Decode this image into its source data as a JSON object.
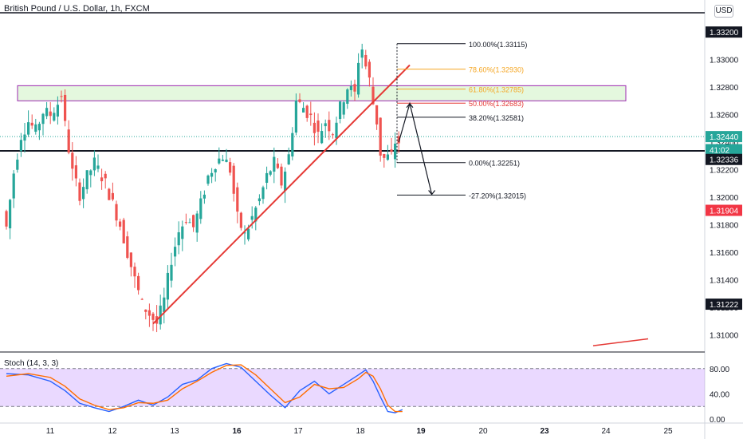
{
  "header": {
    "symbol_title": "British Pound / U.S. Dollar, 1h, FXCM",
    "currency_button": "USD"
  },
  "chart_data": [
    {
      "type": "candlestick",
      "title": "British Pound / U.S. Dollar, 1h, FXCM",
      "y_ticks": [
        "1.33200",
        "1.33000",
        "1.32800",
        "1.32600",
        "1.32400",
        "1.32200",
        "1.32000",
        "1.31800",
        "1.31600",
        "1.31400",
        "1.31200",
        "1.31000"
      ],
      "ylim": [
        1.3088,
        1.3334
      ],
      "x_ticks": [
        "11",
        "12",
        "13",
        "16",
        "17",
        "18",
        "19",
        "20",
        "23",
        "24",
        "25"
      ],
      "x_tick_bold": [
        "16",
        "19",
        "23"
      ],
      "price_path": [
        [
          0,
          1.319
        ],
        [
          1,
          1.3178
        ],
        [
          3,
          1.3218
        ],
        [
          5,
          1.3245
        ],
        [
          7,
          1.3255
        ],
        [
          9,
          1.3248
        ],
        [
          11,
          1.3262
        ],
        [
          13,
          1.326
        ],
        [
          15,
          1.3268
        ],
        [
          16,
          1.3275
        ],
        [
          17,
          1.3252
        ],
        [
          19,
          1.3218
        ],
        [
          21,
          1.3202
        ],
        [
          23,
          1.3215
        ],
        [
          25,
          1.3225
        ],
        [
          26,
          1.322
        ],
        [
          28,
          1.321
        ],
        [
          30,
          1.3195
        ],
        [
          32,
          1.318
        ],
        [
          34,
          1.316
        ],
        [
          36,
          1.314
        ],
        [
          38,
          1.3122
        ],
        [
          40,
          1.3115
        ],
        [
          42,
          1.3108
        ],
        [
          44,
          1.3125
        ],
        [
          46,
          1.3155
        ],
        [
          48,
          1.3175
        ],
        [
          50,
          1.3185
        ],
        [
          52,
          1.3178
        ],
        [
          54,
          1.3195
        ],
        [
          56,
          1.3215
        ],
        [
          58,
          1.3225
        ],
        [
          60,
          1.323
        ],
        [
          62,
          1.322
        ],
        [
          64,
          1.3185
        ],
        [
          66,
          1.3172
        ],
        [
          68,
          1.3185
        ],
        [
          70,
          1.3198
        ],
        [
          72,
          1.3215
        ],
        [
          74,
          1.3225
        ],
        [
          76,
          1.321
        ],
        [
          78,
          1.323
        ],
        [
          80,
          1.327
        ],
        [
          82,
          1.3265
        ],
        [
          84,
          1.3258
        ],
        [
          86,
          1.3245
        ],
        [
          88,
          1.3255
        ],
        [
          90,
          1.3248
        ],
        [
          92,
          1.3265
        ],
        [
          94,
          1.328
        ],
        [
          96,
          1.3275
        ],
        [
          97,
          1.33
        ],
        [
          98,
          1.3308
        ],
        [
          99,
          1.3295
        ],
        [
          100,
          1.3285
        ],
        [
          101,
          1.3268
        ],
        [
          102,
          1.3255
        ],
        [
          103,
          1.3232
        ],
        [
          104,
          1.3228
        ],
        [
          106,
          1.323
        ],
        [
          107,
          1.324
        ]
      ],
      "supply_zone": {
        "from": 1.327,
        "to": 1.3281
      },
      "support_level": 1.32336,
      "trendline": {
        "from": [
          40,
          1.3108
        ],
        "to": [
          110,
          1.3296
        ]
      },
      "trendline_2": {
        "from": [
          160,
          1.3092
        ],
        "to": [
          175,
          1.3097
        ]
      },
      "fibonacci": [
        {
          "label": "100.00%(1.33115)",
          "price": 1.33115,
          "color": "#131722"
        },
        {
          "label": "78.60%(1.32930)",
          "price": 1.3293,
          "color": "#f5a623"
        },
        {
          "label": "61.80%(1.32785)",
          "price": 1.32785,
          "color": "#f5a623"
        },
        {
          "label": "50.00%(1.32683)",
          "price": 1.32683,
          "color": "#e53935"
        },
        {
          "label": "38.20%(1.32581)",
          "price": 1.32581,
          "color": "#131722"
        },
        {
          "label": "0.00%(1.32251)",
          "price": 1.32251,
          "color": "#131722"
        },
        {
          "label": "-27.20%(1.32015)",
          "price": 1.32015,
          "color": "#131722"
        }
      ],
      "projection_path": [
        [
          107,
          1.324
        ],
        [
          110,
          1.3268
        ],
        [
          116,
          1.3202
        ]
      ],
      "price_badges": [
        {
          "text": "1.33200",
          "price": 1.332,
          "bg": "#131722",
          "fg": "#ffffff"
        },
        {
          "text": "1.32440",
          "price": 1.3244,
          "bg": "#26a69a",
          "fg": "#ffffff"
        },
        {
          "text": "41:02",
          "price": 1.32345,
          "bg": "#26a69a",
          "fg": "#ffffff"
        },
        {
          "text": "1.32336",
          "price": 1.32274,
          "bg": "#131722",
          "fg": "#ffffff"
        },
        {
          "text": "1.31904",
          "price": 1.31904,
          "bg": "#f23645",
          "fg": "#ffffff"
        },
        {
          "text": "1.31222",
          "price": 1.31222,
          "bg": "#131722",
          "fg": "#ffffff"
        }
      ],
      "last_price": 1.3244
    },
    {
      "type": "line",
      "title": "Stoch (14, 3, 3)",
      "y_ticks": [
        "80.00",
        "40.00",
        "0.00"
      ],
      "ylim": [
        0,
        100
      ],
      "band": [
        20,
        80
      ],
      "series": [
        {
          "color": "#2962ff",
          "values": [
            [
              0,
              72
            ],
            [
              6,
              70
            ],
            [
              12,
              60
            ],
            [
              16,
              45
            ],
            [
              20,
              25
            ],
            [
              24,
              18
            ],
            [
              28,
              12
            ],
            [
              32,
              20
            ],
            [
              36,
              30
            ],
            [
              40,
              22
            ],
            [
              44,
              35
            ],
            [
              48,
              55
            ],
            [
              52,
              62
            ],
            [
              56,
              80
            ],
            [
              60,
              88
            ],
            [
              64,
              82
            ],
            [
              68,
              60
            ],
            [
              72,
              38
            ],
            [
              76,
              18
            ],
            [
              80,
              45
            ],
            [
              84,
              60
            ],
            [
              88,
              40
            ],
            [
              92,
              55
            ],
            [
              96,
              70
            ],
            [
              98,
              78
            ],
            [
              100,
              60
            ],
            [
              102,
              35
            ],
            [
              104,
              12
            ],
            [
              106,
              10
            ],
            [
              108,
              15
            ]
          ]
        },
        {
          "color": "#ff6d00",
          "values": [
            [
              0,
              68
            ],
            [
              6,
              72
            ],
            [
              12,
              66
            ],
            [
              16,
              52
            ],
            [
              20,
              32
            ],
            [
              24,
              22
            ],
            [
              28,
              15
            ],
            [
              32,
              18
            ],
            [
              36,
              26
            ],
            [
              40,
              25
            ],
            [
              44,
              30
            ],
            [
              48,
              48
            ],
            [
              52,
              60
            ],
            [
              56,
              74
            ],
            [
              60,
              85
            ],
            [
              64,
              86
            ],
            [
              68,
              70
            ],
            [
              72,
              48
            ],
            [
              76,
              26
            ],
            [
              80,
              35
            ],
            [
              84,
              55
            ],
            [
              88,
              48
            ],
            [
              92,
              50
            ],
            [
              96,
              64
            ],
            [
              98,
              74
            ],
            [
              100,
              68
            ],
            [
              102,
              48
            ],
            [
              104,
              22
            ],
            [
              106,
              12
            ],
            [
              108,
              12
            ]
          ]
        }
      ]
    }
  ]
}
